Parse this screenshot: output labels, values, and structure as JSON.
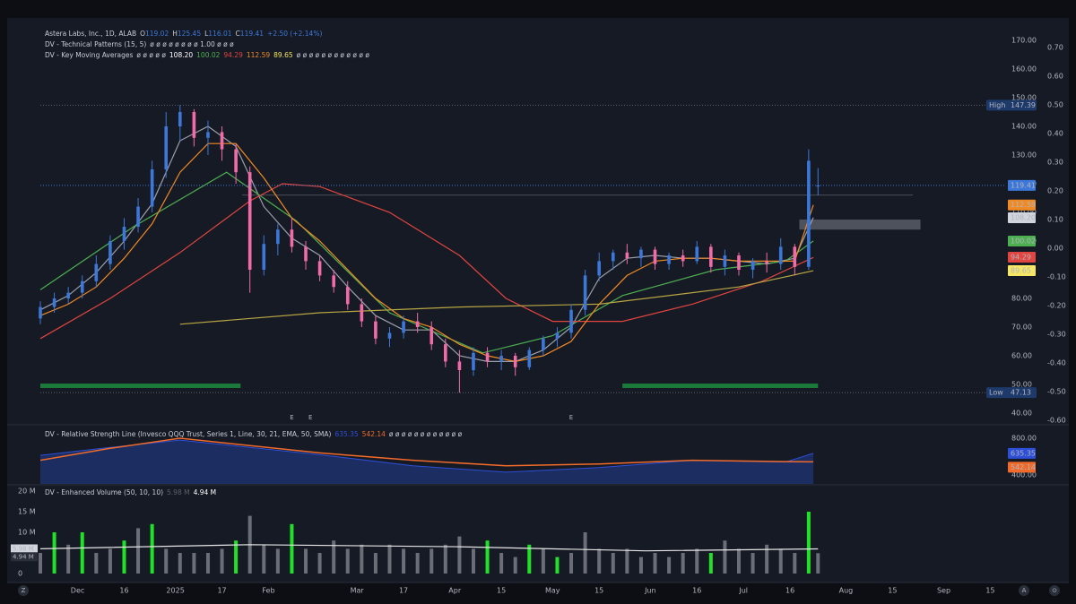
{
  "chart_data": {
    "type": "candlestick",
    "symbol": "Astera Labs, Inc., 1D, ALAB",
    "ohlc_prefixes": [
      "O",
      "H",
      "L",
      "C"
    ],
    "change": "+2.50 (+2.14%)",
    "patterns_legend": "DV - Technical Patterns (15, 5)",
    "patterns_values": "ø ø ø ø ø ø ø ø 1.00 ø ø ø",
    "ma_legend": "DV - Key Moving Averages",
    "ma_placeholder": "ø ø ø ø ø",
    "ma_placeholder_tail": "ø ø ø ø ø ø ø ø ø ø ø ø",
    "xlim": [
      0,
      207
    ],
    "ylim": [
      40,
      170
    ],
    "yticks": [
      {
        "value": 170,
        "label": "170.00"
      },
      {
        "value": 160,
        "label": "160.00"
      },
      {
        "value": 150,
        "label": "150.00"
      },
      {
        "value": 140,
        "label": "140.00"
      },
      {
        "value": 130,
        "label": "130.00"
      },
      {
        "value": 120,
        "label": "120.00"
      },
      {
        "value": 110,
        "label": "110.00"
      },
      {
        "value": 100,
        "label": "100.00"
      },
      {
        "value": 90,
        "label": "90.00"
      },
      {
        "value": 80,
        "label": "80.00"
      },
      {
        "value": 70,
        "label": "70.00"
      },
      {
        "value": 60,
        "label": "60.00"
      },
      {
        "value": 50,
        "label": "50.00"
      },
      {
        "value": 40,
        "label": "40.00"
      }
    ],
    "y2lim": [
      -0.6,
      0.7
    ],
    "y2ticks": [
      {
        "value": 0.7,
        "label": "0.70"
      },
      {
        "value": 0.6,
        "label": "0.60"
      },
      {
        "value": 0.5,
        "label": "0.50"
      },
      {
        "value": 0.4,
        "label": "0.40"
      },
      {
        "value": 0.3,
        "label": "0.30"
      },
      {
        "value": 0.2,
        "label": "0.20"
      },
      {
        "value": 0.1,
        "label": "0.10"
      },
      {
        "value": 0,
        "label": "0.00"
      },
      {
        "value": -0.1,
        "label": "-0.10"
      },
      {
        "value": -0.2,
        "label": "-0.20"
      },
      {
        "value": -0.3,
        "label": "-0.30"
      },
      {
        "value": -0.4,
        "label": "-0.40"
      },
      {
        "value": -0.5,
        "label": "-0.50"
      },
      {
        "value": -0.6,
        "label": "-0.60"
      }
    ],
    "xticks": [
      {
        "value": 8,
        "label": "Dec"
      },
      {
        "value": 18,
        "label": "16"
      },
      {
        "value": 29,
        "label": "2025"
      },
      {
        "value": 39,
        "label": "17"
      },
      {
        "value": 49,
        "label": "Feb"
      },
      {
        "value": 68,
        "label": "Mar"
      },
      {
        "value": 78,
        "label": "17"
      },
      {
        "value": 89,
        "label": "Apr"
      },
      {
        "value": 99,
        "label": "15"
      },
      {
        "value": 110,
        "label": "May"
      },
      {
        "value": 120,
        "label": "15"
      },
      {
        "value": 131,
        "label": "Jun"
      },
      {
        "value": 141,
        "label": "16"
      },
      {
        "value": 151,
        "label": "Jul"
      },
      {
        "value": 161,
        "label": "16"
      },
      {
        "value": 173,
        "label": "Aug"
      },
      {
        "value": 183,
        "label": "15"
      },
      {
        "value": 194,
        "label": "Sep"
      },
      {
        "value": 204,
        "label": "15"
      }
    ],
    "up_color": "#3d78d8",
    "down_color": "#f06ba8",
    "candles": [
      {
        "x": 0,
        "open": 73,
        "high": 79,
        "low": 71,
        "close": 77
      },
      {
        "x": 3,
        "open": 77,
        "high": 82,
        "low": 75,
        "close": 80
      },
      {
        "x": 6,
        "open": 80,
        "high": 84,
        "low": 78,
        "close": 82
      },
      {
        "x": 9,
        "open": 82,
        "high": 88,
        "low": 80,
        "close": 86
      },
      {
        "x": 12,
        "open": 86,
        "high": 95,
        "low": 84,
        "close": 92
      },
      {
        "x": 15,
        "open": 92,
        "high": 102,
        "low": 90,
        "close": 100
      },
      {
        "x": 18,
        "open": 100,
        "high": 108,
        "low": 97,
        "close": 105
      },
      {
        "x": 21,
        "open": 105,
        "high": 115,
        "low": 103,
        "close": 112
      },
      {
        "x": 24,
        "open": 112,
        "high": 128,
        "low": 110,
        "close": 125
      },
      {
        "x": 27,
        "open": 125,
        "high": 145,
        "low": 122,
        "close": 140
      },
      {
        "x": 30,
        "open": 140,
        "high": 147.39,
        "low": 135,
        "close": 145
      },
      {
        "x": 33,
        "open": 145,
        "high": 146,
        "low": 133,
        "close": 136
      },
      {
        "x": 36,
        "open": 136,
        "high": 142,
        "low": 130,
        "close": 138
      },
      {
        "x": 39,
        "open": 138,
        "high": 140,
        "low": 128,
        "close": 132
      },
      {
        "x": 42,
        "open": 132,
        "high": 134,
        "low": 120,
        "close": 124
      },
      {
        "x": 45,
        "open": 124,
        "high": 126,
        "low": 82,
        "close": 90
      },
      {
        "x": 48,
        "open": 90,
        "high": 102,
        "low": 88,
        "close": 99
      },
      {
        "x": 51,
        "open": 99,
        "high": 106,
        "low": 95,
        "close": 104
      },
      {
        "x": 54,
        "open": 104,
        "high": 108,
        "low": 96,
        "close": 98
      },
      {
        "x": 57,
        "open": 98,
        "high": 100,
        "low": 90,
        "close": 93
      },
      {
        "x": 60,
        "open": 93,
        "high": 95,
        "low": 86,
        "close": 88
      },
      {
        "x": 63,
        "open": 88,
        "high": 90,
        "low": 82,
        "close": 84
      },
      {
        "x": 66,
        "open": 84,
        "high": 86,
        "low": 76,
        "close": 78
      },
      {
        "x": 69,
        "open": 78,
        "high": 80,
        "low": 70,
        "close": 72
      },
      {
        "x": 72,
        "open": 72,
        "high": 74,
        "low": 64,
        "close": 66
      },
      {
        "x": 75,
        "open": 66,
        "high": 70,
        "low": 63,
        "close": 68
      },
      {
        "x": 78,
        "open": 68,
        "high": 74,
        "low": 66,
        "close": 72
      },
      {
        "x": 81,
        "open": 72,
        "high": 75,
        "low": 68,
        "close": 70
      },
      {
        "x": 84,
        "open": 70,
        "high": 72,
        "low": 62,
        "close": 64
      },
      {
        "x": 87,
        "open": 64,
        "high": 66,
        "low": 56,
        "close": 58
      },
      {
        "x": 90,
        "open": 58,
        "high": 62,
        "low": 47.13,
        "close": 55
      },
      {
        "x": 93,
        "open": 55,
        "high": 63,
        "low": 53,
        "close": 61
      },
      {
        "x": 96,
        "open": 61,
        "high": 63,
        "low": 56,
        "close": 58
      },
      {
        "x": 99,
        "open": 58,
        "high": 62,
        "low": 55,
        "close": 60
      },
      {
        "x": 102,
        "open": 60,
        "high": 61,
        "low": 53,
        "close": 56
      },
      {
        "x": 105,
        "open": 56,
        "high": 63,
        "low": 55,
        "close": 62
      },
      {
        "x": 108,
        "open": 62,
        "high": 67,
        "low": 60,
        "close": 66
      },
      {
        "x": 111,
        "open": 66,
        "high": 70,
        "low": 63,
        "close": 68
      },
      {
        "x": 114,
        "open": 68,
        "high": 78,
        "low": 66,
        "close": 76
      },
      {
        "x": 117,
        "open": 76,
        "high": 90,
        "low": 74,
        "close": 88
      },
      {
        "x": 120,
        "open": 88,
        "high": 96,
        "low": 86,
        "close": 93
      },
      {
        "x": 123,
        "open": 93,
        "high": 97,
        "low": 90,
        "close": 96
      },
      {
        "x": 126,
        "open": 96,
        "high": 99,
        "low": 92,
        "close": 94
      },
      {
        "x": 129,
        "open": 94,
        "high": 98,
        "low": 91,
        "close": 97
      },
      {
        "x": 132,
        "open": 97,
        "high": 98,
        "low": 90,
        "close": 92
      },
      {
        "x": 135,
        "open": 92,
        "high": 96,
        "low": 90,
        "close": 95
      },
      {
        "x": 138,
        "open": 95,
        "high": 97,
        "low": 91,
        "close": 93
      },
      {
        "x": 141,
        "open": 93,
        "high": 100,
        "low": 92,
        "close": 98
      },
      {
        "x": 144,
        "open": 98,
        "high": 99,
        "low": 89,
        "close": 91
      },
      {
        "x": 147,
        "open": 91,
        "high": 97,
        "low": 88,
        "close": 95
      },
      {
        "x": 150,
        "open": 95,
        "high": 96,
        "low": 88,
        "close": 90
      },
      {
        "x": 153,
        "open": 90,
        "high": 94,
        "low": 87,
        "close": 93
      },
      {
        "x": 156,
        "open": 93,
        "high": 96,
        "low": 89,
        "close": 92
      },
      {
        "x": 159,
        "open": 92,
        "high": 101,
        "low": 90,
        "close": 98
      },
      {
        "x": 162,
        "open": 98,
        "high": 99,
        "low": 88,
        "close": 91
      },
      {
        "x": 165,
        "open": 91,
        "high": 132,
        "low": 90,
        "close": 128
      },
      {
        "x": 167,
        "open": 119.02,
        "high": 125.45,
        "low": 116.01,
        "close": 119.41
      }
    ],
    "moving_averages": [
      {
        "color": "#9aa0ab",
        "x": [
          0,
          6,
          12,
          18,
          24,
          30,
          36,
          42,
          48,
          54,
          60,
          66,
          72,
          78,
          84,
          90,
          96,
          102,
          108,
          114,
          120,
          126,
          132,
          138,
          144,
          150,
          156,
          162,
          166
        ],
        "values": [
          76,
          81,
          89,
          100,
          113,
          135,
          140,
          133,
          112,
          101,
          95,
          84,
          74,
          69,
          69,
          60,
          58,
          58,
          62,
          70,
          87,
          94,
          95,
          94,
          94,
          93,
          92,
          94,
          108.2
        ],
        "last_label": "108.20",
        "tag_text": "#131722"
      },
      {
        "color": "#4caf50",
        "x": [
          0,
          20,
          40,
          55,
          75,
          95,
          110,
          125,
          145,
          160,
          166
        ],
        "values": [
          83,
          105,
          124,
          107,
          75,
          61,
          67,
          81,
          90,
          93,
          100.02
        ],
        "last_label": "100.02",
        "tag_text": "#131722"
      },
      {
        "color": "#e0453f",
        "x": [
          0,
          15,
          30,
          45,
          52,
          60,
          75,
          90,
          100,
          110,
          125,
          140,
          155,
          166
        ],
        "values": [
          66,
          80,
          96,
          114,
          120,
          119,
          110,
          95,
          80,
          72,
          72,
          78,
          86,
          94.29
        ],
        "last_label": "94.29",
        "tag_text": "#ffffff"
      },
      {
        "color": "#f08a24",
        "x": [
          0,
          6,
          12,
          18,
          24,
          30,
          36,
          42,
          48,
          54,
          60,
          66,
          72,
          78,
          84,
          90,
          96,
          102,
          108,
          114,
          120,
          126,
          132,
          138,
          144,
          150,
          156,
          162,
          166
        ],
        "values": [
          74,
          78,
          84,
          94,
          106,
          124,
          134,
          134,
          122,
          108,
          100,
          90,
          80,
          73,
          70,
          64,
          60,
          58,
          60,
          65,
          78,
          88,
          93,
          94,
          94,
          93,
          93,
          93,
          112.59
        ],
        "last_label": "112.59",
        "tag_text": "#131722"
      },
      {
        "color": "#b7a642",
        "x": [
          30,
          60,
          90,
          120,
          150,
          166
        ],
        "values": [
          71,
          75,
          77,
          78,
          84,
          89.65
        ],
        "last_label": "89.65",
        "tag_text": "#131722",
        "tag_color": "#f5e663"
      }
    ],
    "high_label": "High",
    "high": 147.39,
    "low_label": "Low",
    "low": 47.13,
    "ref_line": 116,
    "zone": {
      "x0": 163,
      "x1": 189,
      "y0": 104,
      "y1": 107.5
    },
    "pattern_bands": [
      [
        0,
        43
      ],
      [
        125,
        167
      ]
    ],
    "earnings": [
      {
        "x": 54,
        "label": "E",
        "color": "#4caf50"
      },
      {
        "x": 58,
        "label": "E",
        "color": "#f08a24"
      },
      {
        "x": 114,
        "label": "E",
        "color": "#4caf50"
      }
    ],
    "rsl": {
      "legend": "DV - Relative Strength Line (Invesco QQQ Trust, Series 1, Line, 30, 21, EMA, 50, SMA)",
      "tail": "ø ø ø ø ø ø ø ø ø ø ø ø",
      "lim": [
        400,
        800
      ],
      "ticks": [
        {
          "value": 800,
          "label": "800.00"
        },
        {
          "value": 400,
          "label": "400.00"
        }
      ],
      "line": {
        "color": "#2d4fd6",
        "x": [
          0,
          15,
          30,
          45,
          60,
          80,
          100,
          120,
          140,
          160,
          166
        ],
        "values": [
          614,
          700,
          780,
          700,
          620,
          500,
          430,
          480,
          560,
          540,
          635.35
        ]
      },
      "signal": {
        "color": "#f06a2a",
        "x": [
          0,
          15,
          30,
          45,
          60,
          80,
          100,
          120,
          140,
          160,
          166
        ],
        "values": [
          560,
          690,
          800,
          720,
          640,
          560,
          500,
          520,
          560,
          545,
          542.14
        ]
      }
    },
    "volume": {
      "legend": "DV - Enhanced Volume (50, 10, 10)",
      "lim": [
        0,
        20
      ],
      "ticks": [
        {
          "value": 20,
          "label": "20 M"
        },
        {
          "value": 15,
          "label": "15 M"
        },
        {
          "value": 10,
          "label": "10 M"
        },
        {
          "value": 5,
          "label": "5 M"
        },
        0
      ],
      "values": [
        5,
        10,
        7,
        10,
        5,
        6,
        8,
        11,
        12,
        6,
        5,
        5,
        5,
        6,
        8,
        14,
        7,
        6,
        12,
        6,
        5,
        8,
        6,
        7,
        5,
        7,
        6,
        5,
        6,
        7,
        9,
        6,
        8,
        5,
        4,
        7,
        6,
        4,
        5,
        10,
        6,
        5,
        6,
        4,
        5,
        4,
        5,
        6,
        5,
        8,
        6,
        5,
        7,
        6,
        5,
        15,
        4.94
      ],
      "highlight": [
        false,
        true,
        false,
        true,
        false,
        false,
        true,
        false,
        true,
        false,
        false,
        false,
        false,
        false,
        true,
        false,
        false,
        false,
        true,
        false,
        false,
        false,
        false,
        false,
        false,
        false,
        false,
        false,
        false,
        false,
        false,
        false,
        true,
        false,
        false,
        true,
        false,
        true,
        false,
        false,
        false,
        false,
        false,
        false,
        false,
        false,
        false,
        false,
        true,
        false,
        false,
        false,
        false,
        false,
        false,
        true,
        false
      ],
      "last_label": "4.94 M",
      "color": "#6b6e76",
      "highlight_color": "#22e02a",
      "avg": {
        "x": [
          0,
          45,
          90,
          130,
          167
        ],
        "values": [
          6,
          7,
          6.5,
          5.5,
          5.98
        ],
        "last_label": "5.98 M"
      }
    },
    "bottom_icons": [
      "Z",
      "A",
      "⊙"
    ]
  }
}
